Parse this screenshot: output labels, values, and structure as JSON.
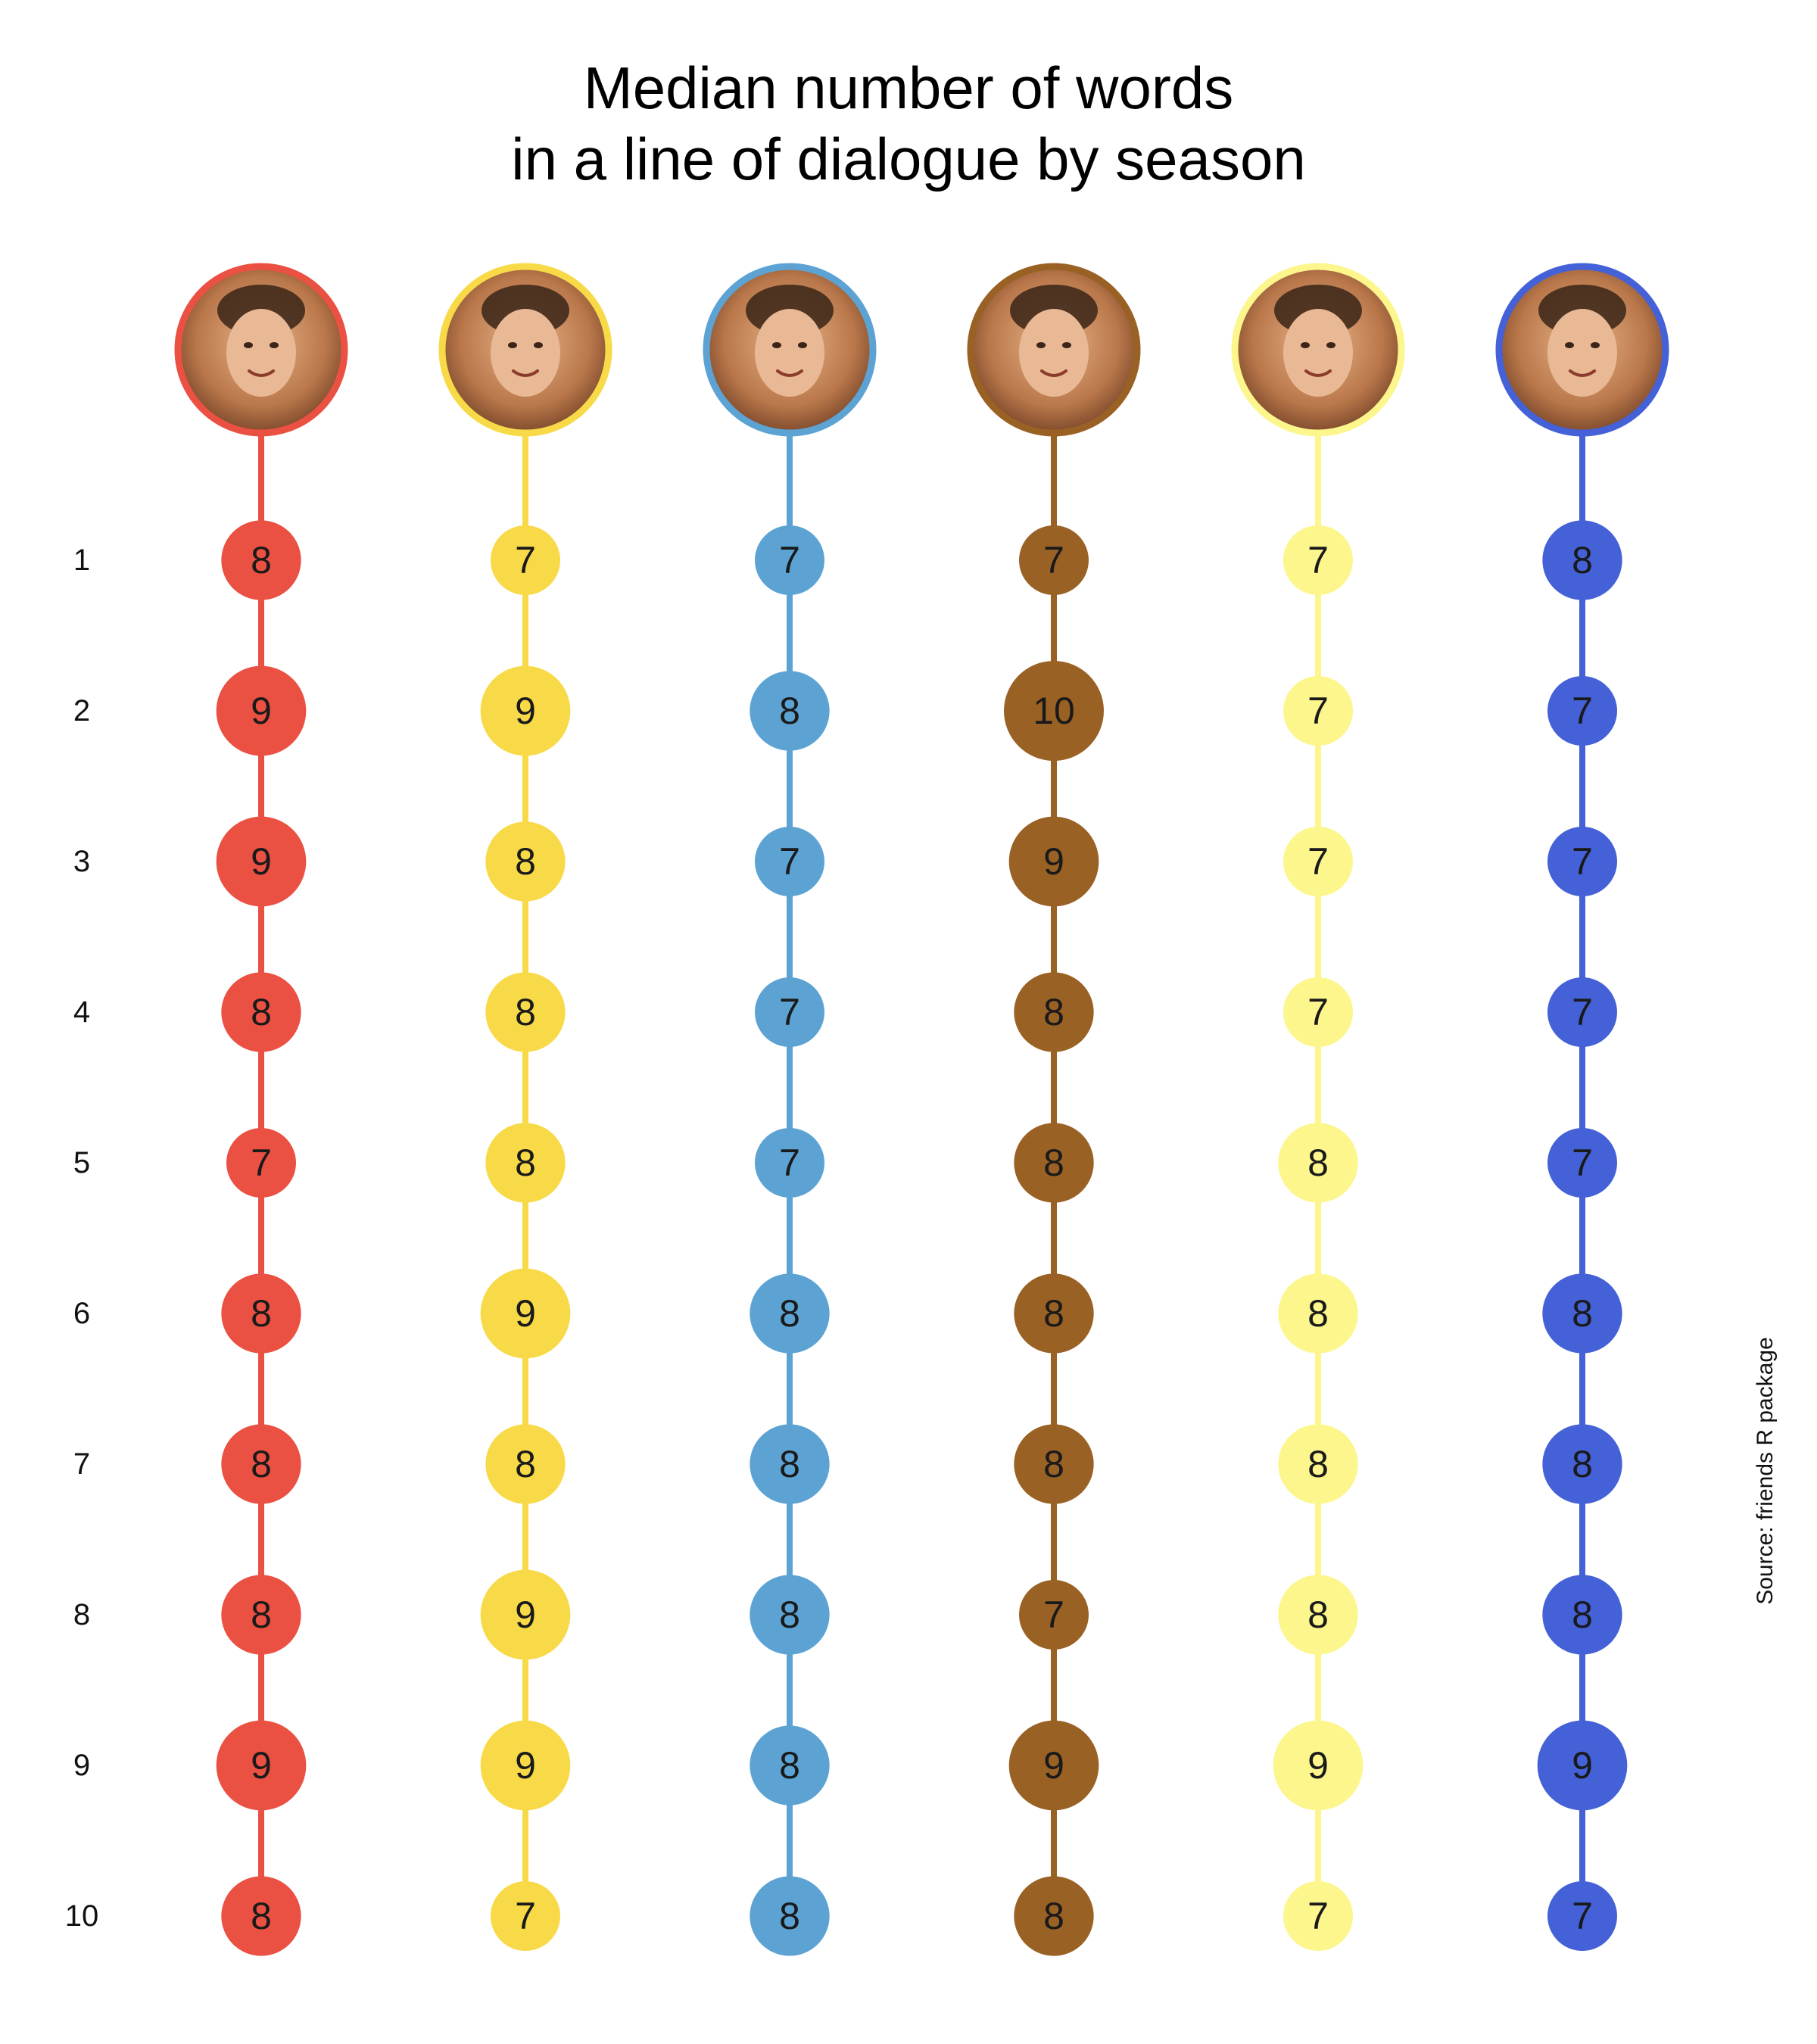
{
  "chart_data": {
    "type": "scatter",
    "title": [
      "Median number of words",
      "in a line of dialogue by season"
    ],
    "source": "Source: friends R package",
    "seasons": [
      "1",
      "2",
      "3",
      "4",
      "5",
      "6",
      "7",
      "8",
      "9",
      "10"
    ],
    "size_range": [
      7,
      10
    ],
    "series": [
      {
        "color": "#EA5143",
        "portrait": "portrait-red",
        "values": [
          8,
          9,
          9,
          8,
          7,
          8,
          8,
          8,
          9,
          8
        ]
      },
      {
        "color": "#F8DA48",
        "portrait": "portrait-yellow",
        "values": [
          7,
          9,
          8,
          8,
          8,
          9,
          8,
          9,
          9,
          7
        ]
      },
      {
        "color": "#5CA3D4",
        "portrait": "portrait-light-blue",
        "values": [
          7,
          8,
          7,
          7,
          7,
          8,
          8,
          8,
          8,
          8
        ]
      },
      {
        "color": "#9A6125",
        "portrait": "portrait-brown",
        "values": [
          7,
          10,
          9,
          8,
          8,
          8,
          8,
          7,
          9,
          8
        ]
      },
      {
        "color": "#FCF68C",
        "portrait": "portrait-pale-yellow",
        "values": [
          7,
          7,
          7,
          7,
          8,
          8,
          8,
          8,
          9,
          7
        ]
      },
      {
        "color": "#4461D7",
        "portrait": "portrait-blue",
        "values": [
          8,
          7,
          7,
          7,
          7,
          8,
          8,
          8,
          9,
          7
        ]
      }
    ]
  }
}
